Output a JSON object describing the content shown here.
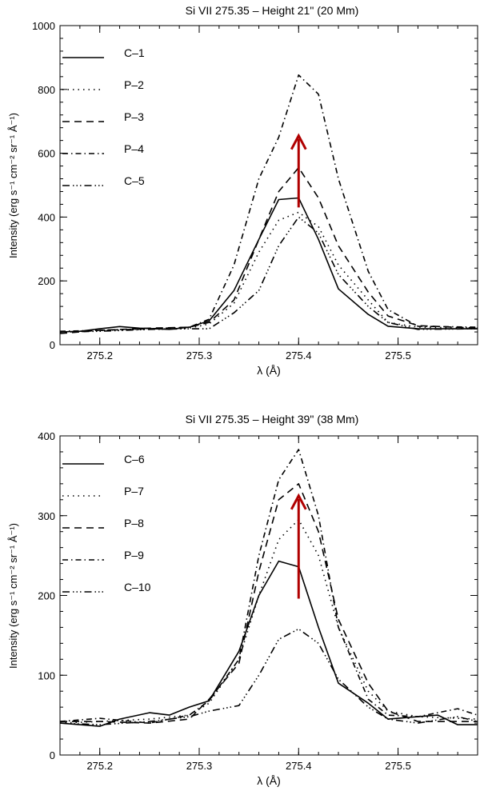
{
  "chart_data": [
    {
      "type": "line",
      "title": "Si VII 275.35 – Height 21\" (20 Mm)",
      "xlabel": "λ (Å)",
      "ylabel": "Intensity (erg s⁻¹ cm⁻² sr⁻¹ Å⁻¹)",
      "xlim": [
        275.16,
        275.58
      ],
      "ylim": [
        0,
        1000
      ],
      "xticks": [
        275.2,
        275.3,
        275.4,
        275.5
      ],
      "xtick_labels": [
        "275.2",
        "275.3",
        "275.4",
        "275.5"
      ],
      "yticks": [
        0,
        200,
        400,
        600,
        800,
        1000
      ],
      "ytick_labels": [
        "0",
        "200",
        "400",
        "600",
        "800",
        "1000"
      ],
      "legend_position": "top-left",
      "arrow": {
        "x": 275.4,
        "y_start": 430,
        "y_end": 655,
        "color": "#b00000"
      },
      "series": [
        {
          "name": "C–1",
          "style": "solid",
          "x": [
            275.16,
            275.18,
            275.2,
            275.22,
            275.24,
            275.27,
            275.29,
            275.31,
            275.335,
            275.36,
            275.38,
            275.4,
            275.42,
            275.44,
            275.47,
            275.49,
            275.52,
            275.58
          ],
          "y": [
            40,
            42,
            50,
            57,
            52,
            48,
            55,
            75,
            170,
            330,
            455,
            460,
            330,
            175,
            95,
            58,
            50,
            50
          ]
        },
        {
          "name": "P–2",
          "style": "dotted",
          "x": [
            275.16,
            275.2,
            275.25,
            275.29,
            275.31,
            275.335,
            275.36,
            275.38,
            275.4,
            275.42,
            275.44,
            275.47,
            275.49,
            275.52,
            275.58
          ],
          "y": [
            38,
            45,
            48,
            52,
            65,
            130,
            290,
            390,
            415,
            370,
            250,
            140,
            70,
            55,
            52
          ]
        },
        {
          "name": "P–3",
          "style": "dashed",
          "x": [
            275.16,
            275.2,
            275.25,
            275.29,
            275.31,
            275.335,
            275.36,
            275.38,
            275.4,
            275.42,
            275.44,
            275.47,
            275.49,
            275.52,
            275.58
          ],
          "y": [
            35,
            45,
            52,
            55,
            70,
            140,
            330,
            480,
            555,
            460,
            310,
            165,
            90,
            60,
            52
          ]
        },
        {
          "name": "P–4",
          "style": "dashdot",
          "x": [
            275.16,
            275.2,
            275.25,
            275.29,
            275.31,
            275.335,
            275.36,
            275.38,
            275.4,
            275.42,
            275.44,
            275.47,
            275.49,
            275.52,
            275.58
          ],
          "y": [
            42,
            45,
            50,
            55,
            80,
            250,
            520,
            650,
            845,
            785,
            520,
            230,
            110,
            58,
            55
          ]
        },
        {
          "name": "C–5",
          "style": "dashdotdotdot",
          "x": [
            275.16,
            275.2,
            275.25,
            275.29,
            275.31,
            275.335,
            275.36,
            275.38,
            275.4,
            275.42,
            275.44,
            275.47,
            275.49,
            275.52,
            275.58
          ],
          "y": [
            40,
            42,
            48,
            50,
            50,
            100,
            170,
            310,
            400,
            350,
            220,
            120,
            70,
            48,
            50
          ]
        }
      ]
    },
    {
      "type": "line",
      "title": "Si VII 275.35 – Height 39\" (38 Mm)",
      "xlabel": "λ (Å)",
      "ylabel": "Intensity (erg s⁻¹ cm⁻² sr⁻¹ Å⁻¹)",
      "xlim": [
        275.16,
        275.58
      ],
      "ylim": [
        0,
        400
      ],
      "xticks": [
        275.2,
        275.3,
        275.4,
        275.5
      ],
      "xtick_labels": [
        "275.2",
        "275.3",
        "275.4",
        "275.5"
      ],
      "yticks": [
        0,
        100,
        200,
        300,
        400
      ],
      "ytick_labels": [
        "0",
        "100",
        "200",
        "300",
        "400"
      ],
      "legend_position": "top-left",
      "arrow": {
        "x": 275.4,
        "y_start": 196,
        "y_end": 325,
        "color": "#b00000"
      },
      "series": [
        {
          "name": "C–6",
          "style": "solid",
          "x": [
            275.16,
            275.2,
            275.22,
            275.25,
            275.27,
            275.29,
            275.31,
            275.34,
            275.36,
            275.38,
            275.4,
            275.42,
            275.44,
            275.47,
            275.49,
            275.52,
            275.54,
            275.56,
            275.58
          ],
          "y": [
            40,
            36,
            45,
            53,
            50,
            60,
            68,
            130,
            200,
            243,
            236,
            160,
            90,
            65,
            45,
            48,
            50,
            38,
            38
          ]
        },
        {
          "name": "P–7",
          "style": "dotted",
          "x": [
            275.16,
            275.2,
            275.25,
            275.29,
            275.31,
            275.34,
            275.36,
            275.38,
            275.4,
            275.42,
            275.44,
            275.47,
            275.49,
            275.52,
            275.58
          ],
          "y": [
            40,
            42,
            45,
            50,
            65,
            120,
            200,
            270,
            295,
            250,
            160,
            80,
            55,
            48,
            45
          ]
        },
        {
          "name": "P–8",
          "style": "dashed",
          "x": [
            275.16,
            275.2,
            275.25,
            275.29,
            275.31,
            275.34,
            275.36,
            275.38,
            275.4,
            275.42,
            275.44,
            275.47,
            275.49,
            275.52,
            275.58
          ],
          "y": [
            42,
            42,
            40,
            45,
            70,
            115,
            230,
            320,
            340,
            280,
            170,
            90,
            55,
            42,
            42
          ]
        },
        {
          "name": "P–9",
          "style": "dashdot",
          "x": [
            275.16,
            275.2,
            275.25,
            275.29,
            275.31,
            275.34,
            275.36,
            275.38,
            275.4,
            275.42,
            275.44,
            275.47,
            275.49,
            275.52,
            275.56,
            275.58
          ],
          "y": [
            42,
            46,
            40,
            50,
            68,
            120,
            250,
            345,
            383,
            300,
            160,
            70,
            50,
            48,
            58,
            50
          ]
        },
        {
          "name": "C–10",
          "style": "dashdotdotdot",
          "x": [
            275.16,
            275.2,
            275.25,
            275.29,
            275.31,
            275.34,
            275.36,
            275.38,
            275.4,
            275.42,
            275.44,
            275.47,
            275.49,
            275.52,
            275.56,
            275.58
          ],
          "y": [
            40,
            38,
            42,
            48,
            55,
            62,
            100,
            145,
            158,
            140,
            95,
            60,
            45,
            40,
            48,
            42
          ]
        }
      ]
    }
  ]
}
